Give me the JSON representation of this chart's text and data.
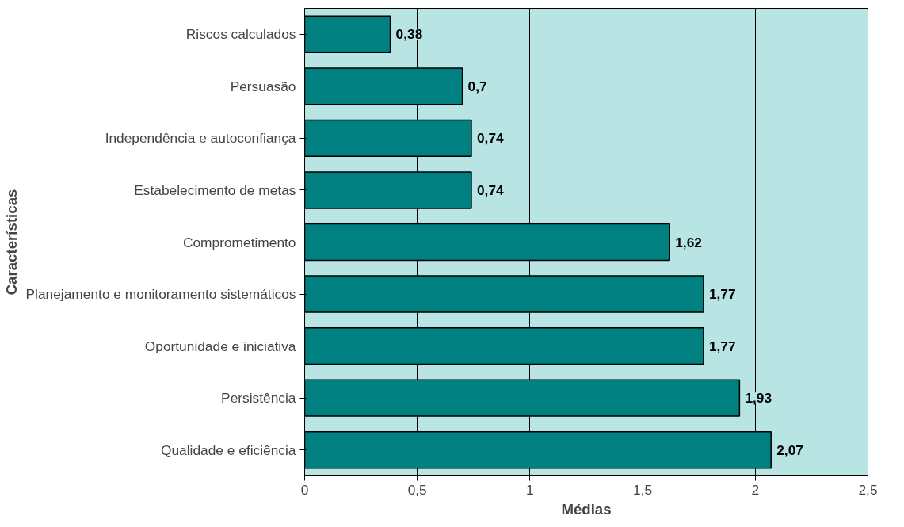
{
  "chart_data": {
    "type": "bar",
    "orientation": "horizontal",
    "xlabel": "Médias",
    "ylabel": "Características",
    "categories": [
      "Riscos calculados",
      "Persuasão",
      "Independência e autoconfiança",
      "Estabelecimento de metas",
      "Comprometimento",
      "Planejamento e monitoramento sistemáticos",
      "Oportunidade e iniciativa",
      "Persistência",
      "Qualidade e eficiência"
    ],
    "values": [
      0.38,
      0.7,
      0.74,
      0.74,
      1.62,
      1.77,
      1.77,
      1.93,
      2.07
    ],
    "value_labels": [
      "0,38",
      "0,7",
      "0,74",
      "0,74",
      "1,62",
      "1,77",
      "1,77",
      "1,93",
      "2,07"
    ],
    "color": "#008080",
    "xlim": [
      0,
      2.5
    ],
    "xticks": [
      0,
      {
        "value": 0.5,
        "label": "0,5"
      },
      1,
      {
        "value": 1.5,
        "label": "1,5"
      },
      2,
      {
        "value": 2.5,
        "label": "2,5"
      }
    ],
    "grid": "x"
  }
}
